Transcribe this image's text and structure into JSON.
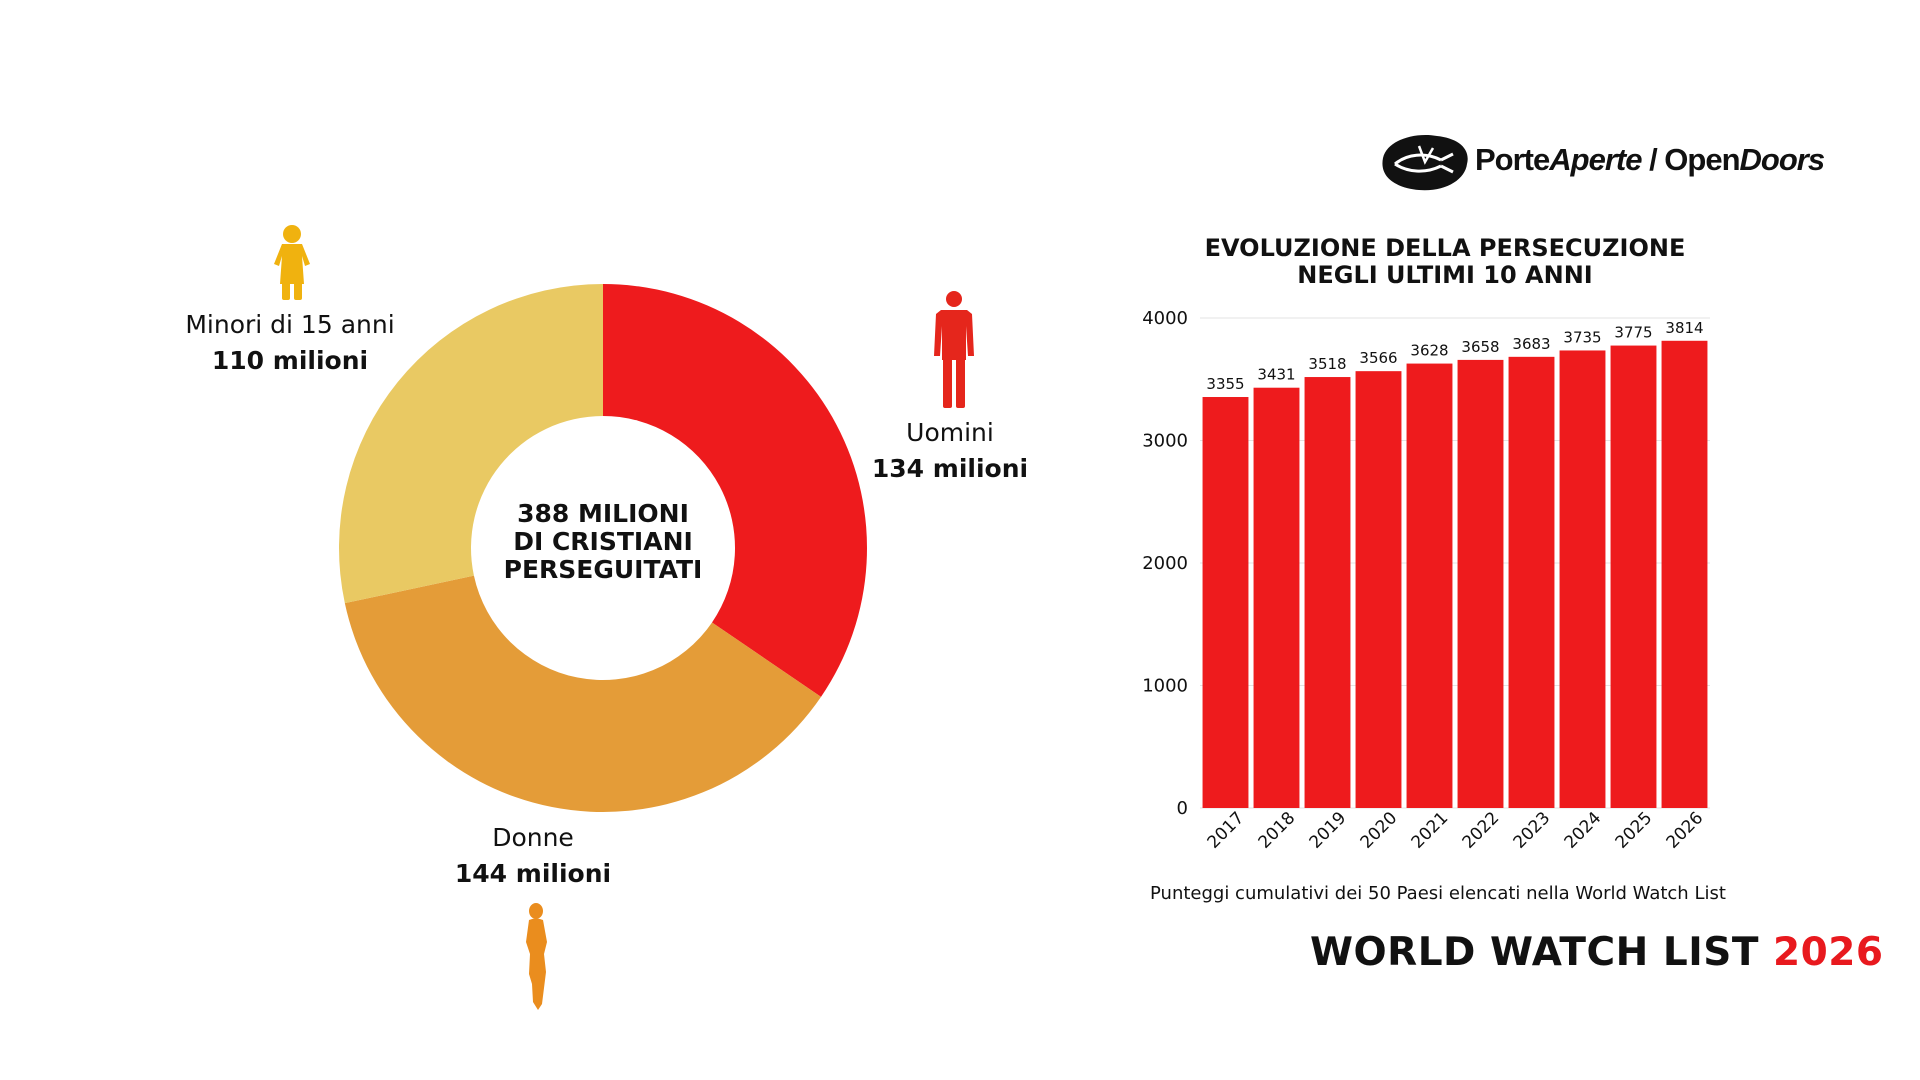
{
  "colors": {
    "red": "#ee1b1d",
    "orange": "#e49c38",
    "yellow": "#e9c963",
    "child_icon": "#f0b20f",
    "man_icon": "#e5261c",
    "woman_icon": "#ea8d1e",
    "accent_year": "#e8191e"
  },
  "logo": {
    "part1": "Porte",
    "part2": "Aperte",
    "sep": " / ",
    "part3": "Open",
    "part4": "Doors"
  },
  "donut": {
    "center_lines": [
      "388 MILIONI",
      "DI CRISTIANI",
      "PERSEGUITATI"
    ],
    "segments": [
      {
        "name": "Uomini",
        "value_label": "134 milioni",
        "value": 134,
        "color": "#ee1b1d",
        "icon": "man-icon"
      },
      {
        "name": "Donne",
        "value_label": "144 milioni",
        "value": 144,
        "color": "#e49c38",
        "icon": "woman-icon"
      },
      {
        "name": "Minori di 15 anni",
        "value_label": "110 milioni",
        "value": 110,
        "color": "#e9c963",
        "icon": "child-icon"
      }
    ]
  },
  "bar_title_lines": [
    "EVOLUZIONE DELLA PERSECUZIONE",
    "NEGLI ULTIMI 10 ANNI"
  ],
  "chart_data": [
    {
      "type": "pie",
      "categories": [
        "Uomini",
        "Donne",
        "Minori di 15 anni"
      ],
      "values": [
        134,
        144,
        110
      ],
      "title": "388 MILIONI DI CRISTIANI PERSEGUITATI"
    },
    {
      "type": "bar",
      "title": "EVOLUZIONE DELLA PERSECUZIONE NEGLI ULTIMI 10 ANNI",
      "categories": [
        "2017",
        "2018",
        "2019",
        "2020",
        "2021",
        "2022",
        "2023",
        "2024",
        "2025",
        "2026"
      ],
      "values": [
        3355,
        3431,
        3518,
        3566,
        3628,
        3658,
        3683,
        3735,
        3775,
        3814
      ],
      "ylim": [
        0,
        4000
      ],
      "yticks": [
        "0",
        "1000",
        "2000",
        "3000",
        "4000"
      ],
      "grid": true,
      "color": "#ee1b1d"
    }
  ],
  "note": "Punteggi cumulativi dei 50 Paesi elencati nella World Watch List",
  "footer": {
    "text": "WORLD WATCH LIST ",
    "year": "2026"
  }
}
